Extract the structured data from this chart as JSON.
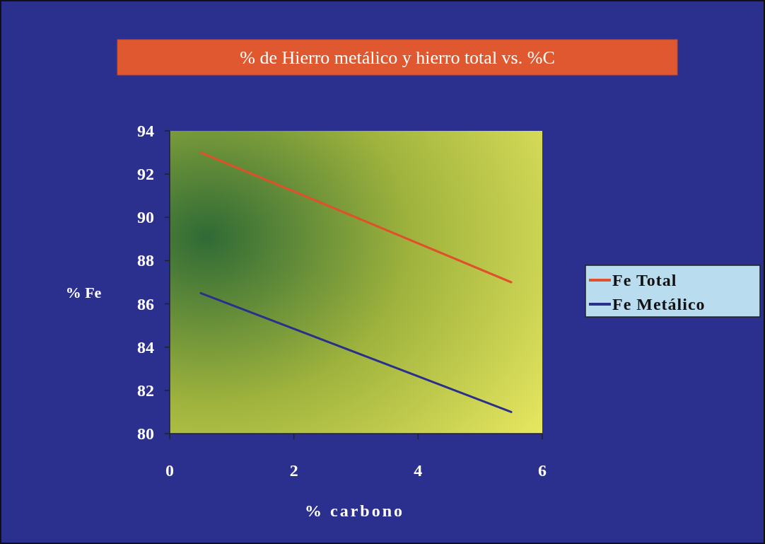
{
  "chart_data": {
    "type": "line",
    "title": "% de  Hierro metálico y hierro total vs. %C",
    "xlabel": "% carbono",
    "ylabel": "% Fe",
    "x": [
      0.5,
      5.5
    ],
    "series": [
      {
        "name": "Fe Total",
        "color": "#e0502a",
        "values": [
          93,
          87
        ]
      },
      {
        "name": "Fe Metálico",
        "color": "#2a2f8c",
        "values": [
          86.5,
          81
        ]
      }
    ],
    "xlim": [
      0,
      6
    ],
    "xticks": [
      0,
      2,
      4,
      6
    ],
    "ylim": [
      80,
      94
    ],
    "yticks": [
      80,
      82,
      84,
      86,
      88,
      90,
      92,
      94
    ],
    "grid": false,
    "legend": "right",
    "marker": "none",
    "line_style": "solid"
  }
}
